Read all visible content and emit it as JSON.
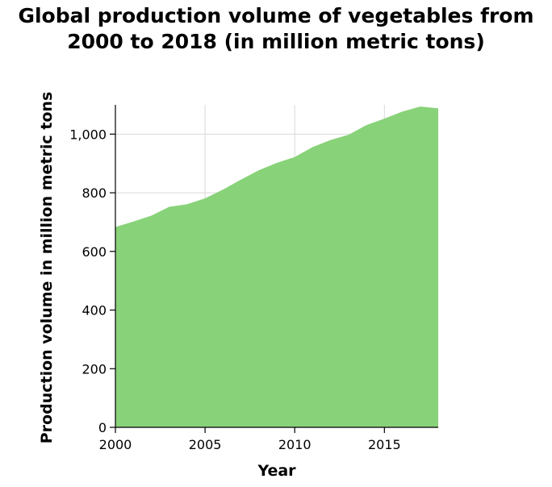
{
  "chart_data": {
    "type": "area",
    "title_lines": [
      "Global production volume of vegetables from",
      "2000 to 2018 (in million metric tons)"
    ],
    "xlabel": "Year",
    "ylabel": "Production volume in million metric tons",
    "x": [
      2000,
      2001,
      2002,
      2003,
      2004,
      2005,
      2006,
      2007,
      2008,
      2009,
      2010,
      2011,
      2012,
      2013,
      2014,
      2015,
      2016,
      2017,
      2018
    ],
    "values": [
      683,
      702,
      722,
      752,
      761,
      781,
      811,
      845,
      877,
      902,
      922,
      956,
      980,
      998,
      1031,
      1053,
      1077,
      1094,
      1088
    ],
    "xlim": [
      2000,
      2018
    ],
    "ylim": [
      0,
      1100
    ],
    "x_ticks": [
      2000,
      2005,
      2010,
      2015
    ],
    "x_tick_labels": [
      "2000",
      "2005",
      "2010",
      "2015"
    ],
    "y_ticks": [
      0,
      200,
      400,
      600,
      800,
      1000
    ],
    "y_tick_labels": [
      "0",
      "200",
      "400",
      "600",
      "800",
      "1,000"
    ],
    "grid": true,
    "fill_color": "#88d279",
    "grid_color": "#d9d9d9",
    "axis_color": "#000000"
  }
}
